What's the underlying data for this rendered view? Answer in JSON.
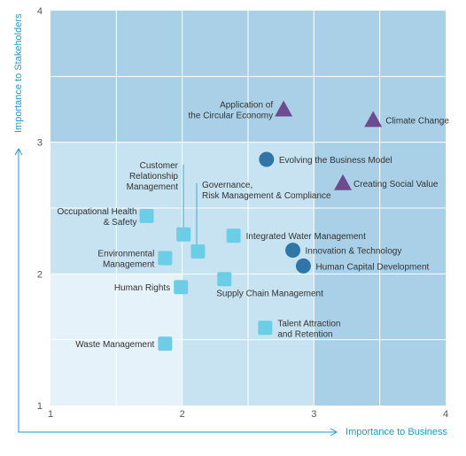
{
  "chart_data": {
    "type": "scatter",
    "xlabel": "Importance to Business",
    "ylabel": "Importance to Stakeholders",
    "xlim": [
      1,
      4
    ],
    "ylim": [
      1,
      4
    ],
    "xticks": [
      "1",
      "2",
      "3",
      "4"
    ],
    "yticks": [
      "1",
      "2",
      "3",
      "4"
    ],
    "grid": true,
    "colors": {
      "square": "#6ccde6",
      "circle": "#2f75a8",
      "triangle": "#6e4b8f",
      "axis": "#1e9bcf",
      "zone_light": "#e6f2f9",
      "zone_mid": "#c7e2f1",
      "zone_dark": "#a9d0e7",
      "grid": "#ffffff"
    },
    "points": [
      {
        "label": [
          "Application of",
          "the Circular Economy"
        ],
        "x": 2.77,
        "y": 3.25,
        "shape": "triangle"
      },
      {
        "label": [
          "Climate Change"
        ],
        "x": 3.45,
        "y": 3.17,
        "shape": "triangle"
      },
      {
        "label": [
          "Creating Social Value"
        ],
        "x": 3.22,
        "y": 2.69,
        "shape": "triangle"
      },
      {
        "label": [
          "Evolving the Business Model"
        ],
        "x": 2.64,
        "y": 2.87,
        "shape": "circle"
      },
      {
        "label": [
          "Innovation & Technology"
        ],
        "x": 2.84,
        "y": 2.18,
        "shape": "circle"
      },
      {
        "label": [
          "Human Capital Development"
        ],
        "x": 2.92,
        "y": 2.06,
        "shape": "circle"
      },
      {
        "label": [
          "Occupational Health",
          "& Safety"
        ],
        "x": 1.73,
        "y": 2.44,
        "shape": "square"
      },
      {
        "label": [
          "Customer",
          "Relationship",
          "Management"
        ],
        "x": 2.01,
        "y": 2.3,
        "shape": "square"
      },
      {
        "label": [
          "Governance,",
          "Risk Management & Compliance"
        ],
        "x": 2.12,
        "y": 2.17,
        "shape": "square"
      },
      {
        "label": [
          "Integrated Water Management"
        ],
        "x": 2.39,
        "y": 2.29,
        "shape": "square"
      },
      {
        "label": [
          "Environmental",
          "Management"
        ],
        "x": 1.87,
        "y": 2.12,
        "shape": "square"
      },
      {
        "label": [
          "Human Rights"
        ],
        "x": 1.99,
        "y": 1.9,
        "shape": "square"
      },
      {
        "label": [
          "Supply Chain Management"
        ],
        "x": 2.32,
        "y": 1.96,
        "shape": "square"
      },
      {
        "label": [
          "Talent Attraction",
          "and Retention"
        ],
        "x": 2.63,
        "y": 1.59,
        "shape": "square"
      },
      {
        "label": [
          "Waste Management"
        ],
        "x": 1.87,
        "y": 1.47,
        "shape": "square"
      }
    ]
  }
}
